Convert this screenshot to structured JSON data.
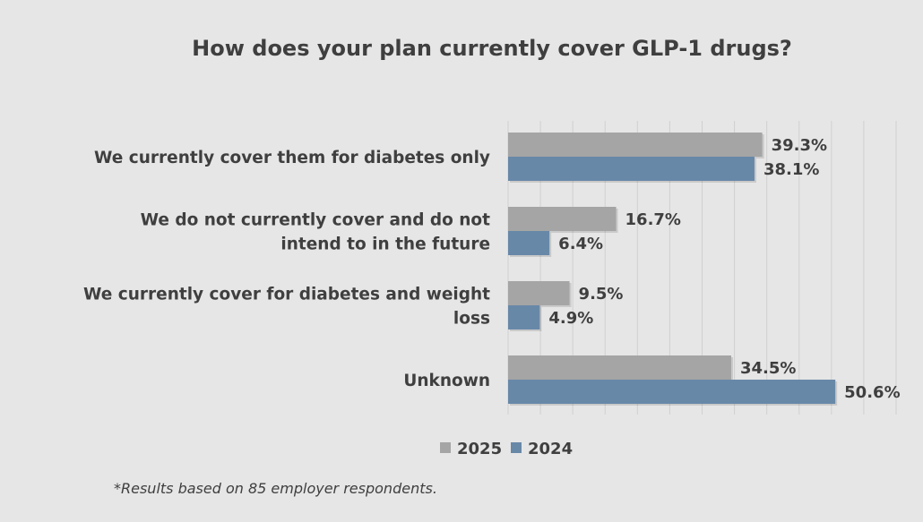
{
  "chart_data": {
    "type": "bar",
    "orientation": "horizontal",
    "title": "How does your plan currently cover GLP-1 drugs?",
    "categories": [
      [
        "We currently cover them for diabetes only"
      ],
      [
        "We do not currently cover and do not",
        "intend to in the future"
      ],
      [
        "We currently cover for diabetes and weight",
        "loss"
      ],
      [
        "Unknown"
      ]
    ],
    "series": [
      {
        "name": "2025",
        "color": "#a5a5a5",
        "values": [
          39.3,
          16.7,
          9.5,
          34.5
        ],
        "labels": [
          "39.3%",
          "16.7%",
          "9.5%",
          "34.5%"
        ]
      },
      {
        "name": "2024",
        "color": "#6888a8",
        "values": [
          38.1,
          6.4,
          4.9,
          50.6
        ],
        "labels": [
          "38.1%",
          "6.4%",
          "4.9%",
          "50.6%"
        ]
      }
    ],
    "xlim": [
      0,
      60
    ],
    "grid": true,
    "legend": "bottom"
  },
  "footnote": "*Results based on 85 employer respondents."
}
